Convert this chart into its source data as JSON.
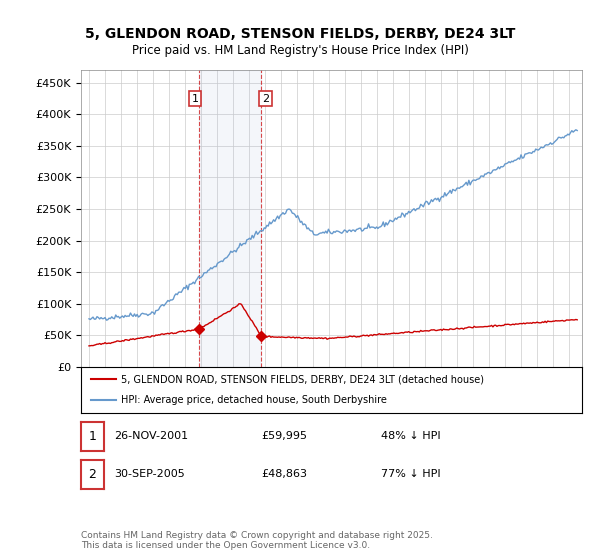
{
  "title_line1": "5, GLENDON ROAD, STENSON FIELDS, DERBY, DE24 3LT",
  "title_line2": "Price paid vs. HM Land Registry's House Price Index (HPI)",
  "ylim": [
    0,
    470000
  ],
  "yticks": [
    0,
    50000,
    100000,
    150000,
    200000,
    250000,
    300000,
    350000,
    400000,
    450000
  ],
  "ytick_labels": [
    "£0",
    "£50K",
    "£100K",
    "£150K",
    "£200K",
    "£250K",
    "£300K",
    "£350K",
    "£400K",
    "£450K"
  ],
  "background_color": "#ffffff",
  "grid_color": "#cccccc",
  "hpi_color": "#6699cc",
  "price_color": "#cc0000",
  "purchase1_date_x": 2001.9,
  "purchase1_price": 59995,
  "purchase1_label": "1",
  "purchase2_date_x": 2005.75,
  "purchase2_price": 48863,
  "purchase2_label": "2",
  "shade_x1": 2001.9,
  "shade_x2": 2005.75,
  "legend_line1": "5, GLENDON ROAD, STENSON FIELDS, DERBY, DE24 3LT (detached house)",
  "legend_line2": "HPI: Average price, detached house, South Derbyshire",
  "table_row1_num": "1",
  "table_row1_date": "26-NOV-2001",
  "table_row1_price": "£59,995",
  "table_row1_hpi": "48% ↓ HPI",
  "table_row2_num": "2",
  "table_row2_date": "30-SEP-2005",
  "table_row2_price": "£48,863",
  "table_row2_hpi": "77% ↓ HPI",
  "footnote": "Contains HM Land Registry data © Crown copyright and database right 2025.\nThis data is licensed under the Open Government Licence v3.0.",
  "xmin": 1994.5,
  "xmax": 2025.8
}
